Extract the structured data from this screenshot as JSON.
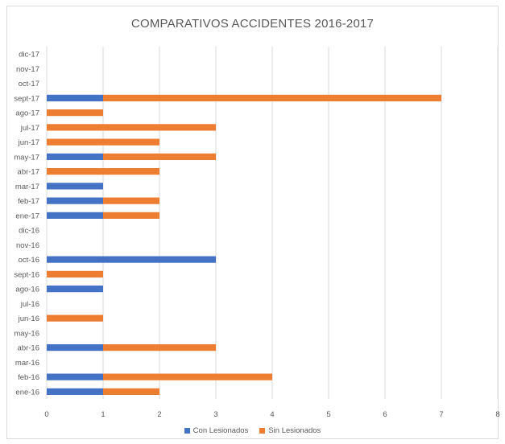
{
  "chart_data": {
    "type": "bar",
    "orientation": "horizontal",
    "stacked": true,
    "title": "COMPARATIVOS  ACCIDENTES 2016-2017",
    "categories": [
      "ene-16",
      "feb-16",
      "mar-16",
      "abr-16",
      "may-16",
      "jun-16",
      "jul-16",
      "ago-16",
      "sept-16",
      "oct-16",
      "nov-16",
      "dic-16",
      "ene-17",
      "feb-17",
      "mar-17",
      "abr-17",
      "may-17",
      "jun-17",
      "jul-17",
      "ago-17",
      "sept-17",
      "oct-17",
      "nov-17",
      "dic-17"
    ],
    "series": [
      {
        "name": "Con Lesionados",
        "color": "#4472c4",
        "values": [
          1,
          1,
          0,
          1,
          0,
          0,
          0,
          1,
          0,
          3,
          0,
          0,
          1,
          1,
          1,
          0,
          1,
          0,
          0,
          0,
          1,
          0,
          0,
          0
        ]
      },
      {
        "name": "Sin Lesionados",
        "color": "#ed7d31",
        "values": [
          1,
          3,
          0,
          2,
          0,
          1,
          0,
          0,
          1,
          0,
          0,
          0,
          1,
          1,
          0,
          2,
          2,
          2,
          3,
          1,
          6,
          0,
          0,
          0
        ]
      }
    ],
    "x_ticks": [
      "0",
      "1",
      "2",
      "3",
      "4",
      "5",
      "6",
      "7",
      "8"
    ],
    "xlim": [
      0,
      8
    ],
    "grid": true,
    "legend_position": "bottom"
  }
}
